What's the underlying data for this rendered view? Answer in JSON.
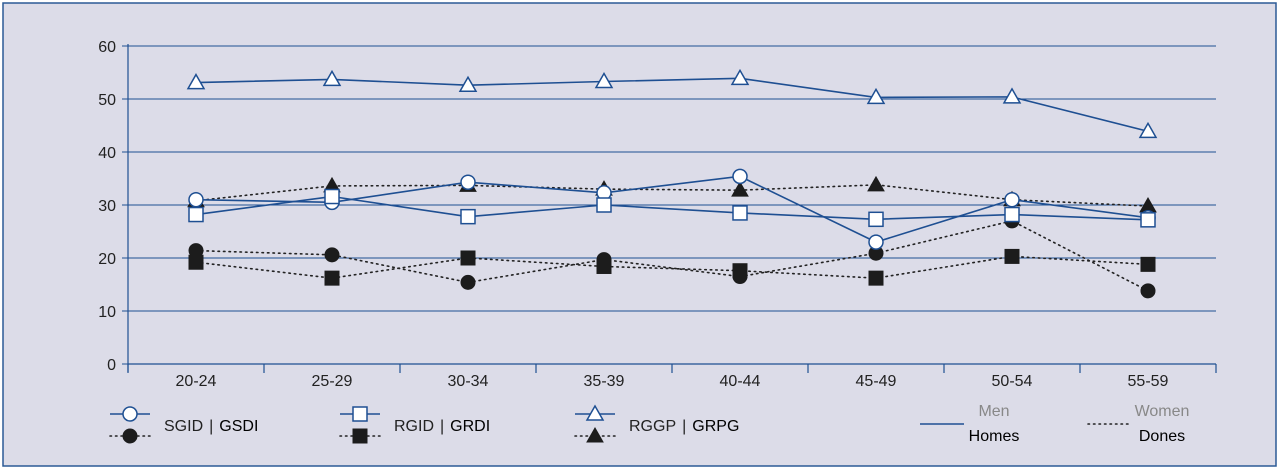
{
  "colors": {
    "background": "#dcdce8",
    "border": "#2b5a96",
    "axis": "#1e4f92",
    "grid": "#1e4f92",
    "men_line": "#1e4f92",
    "women_line": "#222222",
    "marker_women": "#1c1c1c",
    "text": "#222222",
    "legend_muted": "#888888"
  },
  "chart_data": {
    "type": "line",
    "title": "",
    "xlabel": "",
    "ylabel": "",
    "ylim": [
      0,
      60
    ],
    "yticks": [
      "0",
      "10",
      "20",
      "30",
      "40",
      "50",
      "60"
    ],
    "grid": true,
    "categories": [
      "20-24",
      "25-29",
      "30-34",
      "35-39",
      "40-44",
      "45-49",
      "50-54",
      "55-59"
    ],
    "series": [
      {
        "group": "SGID",
        "sex": "men",
        "marker": "circle-open",
        "values": [
          31,
          30.5,
          34.3,
          32.3,
          35.4,
          23,
          31,
          27.6
        ]
      },
      {
        "group": "RGID",
        "sex": "men",
        "marker": "square-open",
        "values": [
          28.2,
          31.6,
          27.8,
          30,
          28.5,
          27.3,
          28.2,
          27.2
        ]
      },
      {
        "group": "RGGP",
        "sex": "men",
        "marker": "triangle-open",
        "values": [
          53.1,
          53.7,
          52.6,
          53.3,
          53.9,
          50.3,
          50.4,
          43.9
        ]
      },
      {
        "group": "GSDI",
        "sex": "women",
        "marker": "circle-filled",
        "values": [
          21.4,
          20.6,
          15.4,
          19.7,
          16.5,
          20.9,
          27,
          13.8
        ]
      },
      {
        "group": "GRDI",
        "sex": "women",
        "marker": "square-filled",
        "values": [
          19.2,
          16.2,
          20,
          18.4,
          17.6,
          16.2,
          20.3,
          18.8
        ]
      },
      {
        "group": "GRPG",
        "sex": "women",
        "marker": "triangle-filled",
        "values": [
          30.8,
          33.6,
          33.7,
          33,
          32.8,
          33.8,
          31,
          29.8
        ]
      }
    ]
  },
  "legend": {
    "items": [
      {
        "key": "SGID",
        "sep": "|",
        "alt": "GSDI"
      },
      {
        "key": "RGID",
        "sep": "|",
        "alt": "GRDI"
      },
      {
        "key": "RGGP",
        "sep": "|",
        "alt": "GRPG"
      }
    ],
    "style": [
      {
        "top": "Men",
        "bottom": "Homes"
      },
      {
        "top": "Women",
        "bottom": "Dones"
      }
    ]
  }
}
